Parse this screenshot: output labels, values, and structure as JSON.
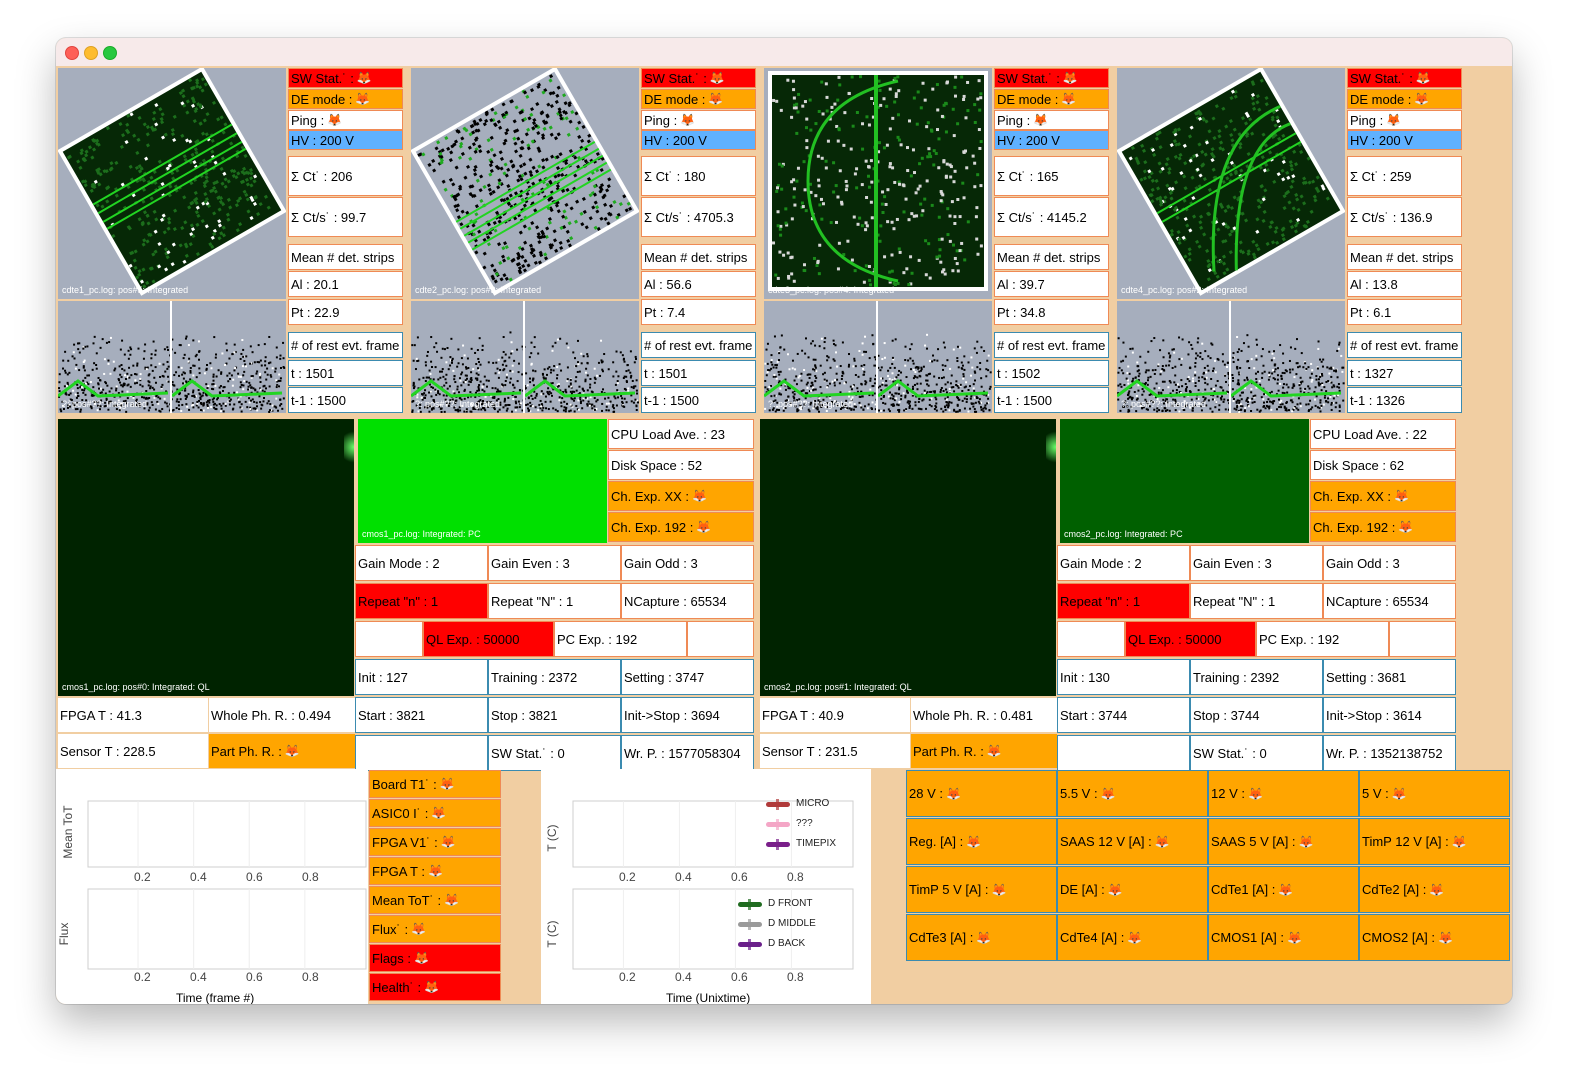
{
  "cdte": [
    {
      "image_label": "cdte1_pc.log: pos#5: Integrated",
      "spec_label": "?: pos#??: Integrated",
      "sw_stat": "SW Stat.˙ :",
      "de_mode": "DE mode :",
      "ping": "Ping :",
      "hv": "HV : 200 V",
      "sum_ct": "Σ Ct˙ : 206",
      "sum_cts": "Σ Ct/s˙ : 99.7",
      "mean_det": "Mean # det. strips",
      "al": "Al : 20.1",
      "pt": "Pt : 22.9",
      "rest": "# of rest evt. frame",
      "t": "t : 1501",
      "t1": "t-1 : 1500"
    },
    {
      "image_label": "cdte2_pc.log: pos#3: Integrated",
      "spec_label": "?: pos#??: Integrated",
      "sw_stat": "SW Stat.˙ :",
      "de_mode": "DE mode :",
      "ping": "Ping :",
      "hv": "HV : 200 V",
      "sum_ct": "Σ Ct˙ : 180",
      "sum_cts": "Σ Ct/s˙ : 4705.3",
      "mean_det": "Mean # det. strips",
      "al": "Al : 56.6",
      "pt": "Pt : 7.4",
      "rest": "# of rest evt. frame",
      "t": "t : 1501",
      "t1": "t-1 : 1500"
    },
    {
      "image_label": "cdte3_pc.log: pos#4: Integrated",
      "spec_label": "?: pos#??: Integrated",
      "sw_stat": "SW Stat.˙ :",
      "de_mode": "DE mode :",
      "ping": "Ping :",
      "hv": "HV : 200 V",
      "sum_ct": "Σ Ct˙ : 165",
      "sum_cts": "Σ Ct/s˙ : 4145.2",
      "mean_det": "Mean # det. strips",
      "al": "Al : 39.7",
      "pt": "Pt : 34.8",
      "rest": "# of rest evt. frame",
      "t": "t : 1502",
      "t1": "t-1 : 1500"
    },
    {
      "image_label": "cdte4_pc.log: pos#2: Integrated",
      "spec_label": "?: pos#??: Integrated",
      "sw_stat": "SW Stat.˙ :",
      "de_mode": "DE mode :",
      "ping": "Ping :",
      "hv": "HV : 200 V",
      "sum_ct": "Σ Ct˙ : 259",
      "sum_cts": "Σ Ct/s˙ : 136.9",
      "mean_det": "Mean # det. strips",
      "al": "Al : 13.8",
      "pt": "Pt : 6.1",
      "rest": "# of rest evt. frame",
      "t": "t : 1327",
      "t1": "t-1 : 1326"
    }
  ],
  "cmos": [
    {
      "ql_label": "cmos1_pc.log: pos#0: Integrated: QL",
      "pc_label": "cmos1_pc.log: Integrated: PC",
      "cpu": "CPU Load Ave. : 23",
      "disk": "Disk Space : 52",
      "ch_exp_xx": "Ch. Exp. XX :",
      "ch_exp_192": "Ch. Exp. 192 :",
      "gain_mode": "Gain Mode : 2",
      "gain_even": "Gain Even : 3",
      "gain_odd": "Gain Odd : 3",
      "repeat_n": "Repeat \"n\" : 1",
      "repeat_N": "Repeat \"N\" : 1",
      "ncapture": "NCapture : 65534",
      "ql_exp": "QL Exp. : 50000",
      "pc_exp": "PC Exp. : 192",
      "init": "Init : 127",
      "training": "Training : 2372",
      "setting": "Setting : 3747",
      "start": "Start : 3821",
      "stop": "Stop : 3821",
      "init_stop": "Init->Stop : 3694",
      "fpga_t": "FPGA T : 41.3",
      "whole_ph": "Whole Ph. R. : 0.494",
      "sensor_t": "Sensor T : 228.5",
      "part_ph": "Part Ph. R. :",
      "sw_stat": "SW Stat.˙ : 0",
      "wr_p": "Wr. P. : 1577058304"
    },
    {
      "ql_label": "cmos2_pc.log: pos#1: Integrated: QL",
      "pc_label": "cmos2_pc.log: Integrated: PC",
      "cpu": "CPU Load Ave. : 22",
      "disk": "Disk Space : 62",
      "ch_exp_xx": "Ch. Exp. XX :",
      "ch_exp_192": "Ch. Exp. 192 :",
      "gain_mode": "Gain Mode : 2",
      "gain_even": "Gain Even : 3",
      "gain_odd": "Gain Odd : 3",
      "repeat_n": "Repeat \"n\" : 1",
      "repeat_N": "Repeat \"N\" : 1",
      "ncapture": "NCapture : 65534",
      "ql_exp": "QL Exp. : 50000",
      "pc_exp": "PC Exp. : 192",
      "init": "Init : 130",
      "training": "Training : 2392",
      "setting": "Setting : 3681",
      "start": "Start : 3744",
      "stop": "Stop : 3744",
      "init_stop": "Init->Stop : 3614",
      "fpga_t": "FPGA T : 40.9",
      "whole_ph": "Whole Ph. R. : 0.481",
      "sensor_t": "Sensor T : 231.5",
      "part_ph": "Part Ph. R. :",
      "sw_stat": "SW Stat.˙ : 0",
      "wr_p": "Wr. P. : 1352138752"
    }
  ],
  "timepix": {
    "ylabel_top": "Mean ToT",
    "ylabel_bottom": "Flux",
    "xlabel": "Time (frame #)",
    "ticks": [
      "0.2",
      "0.4",
      "0.6",
      "0.8"
    ],
    "status": [
      {
        "label": "Board T1˙ :",
        "color": "orange"
      },
      {
        "label": "ASIC0 I˙ :",
        "color": "orange"
      },
      {
        "label": "FPGA V1˙ :",
        "color": "orange"
      },
      {
        "label": "FPGA T :",
        "color": "orange"
      },
      {
        "label": "Mean ToT˙ :",
        "color": "orange"
      },
      {
        "label": "Flux˙ :",
        "color": "orange"
      },
      {
        "label": "Flags :",
        "color": "red"
      },
      {
        "label": "Health˙ :",
        "color": "red"
      }
    ]
  },
  "temp_chart": {
    "ylabel": "T (C)",
    "xlabel": "Time (Unixtime)",
    "ticks": [
      "0.2",
      "0.4",
      "0.6",
      "0.8"
    ],
    "legend_top": [
      {
        "name": "MICRO",
        "color": "#b03a3a"
      },
      {
        "name": "???",
        "color": "#f4a6c6"
      },
      {
        "name": "TIMEPIX",
        "color": "#7a1f8a"
      }
    ],
    "legend_bottom": [
      {
        "name": "D FRONT",
        "color": "#1f6b1f"
      },
      {
        "name": "D MIDDLE",
        "color": "#9a9a9a"
      },
      {
        "name": "D BACK",
        "color": "#6a1f8a"
      }
    ]
  },
  "power": [
    [
      "28 V :",
      "5.5 V :",
      "12 V :",
      "5 V :"
    ],
    [
      "Reg. [A] :",
      "SAAS 12 V [A] :",
      "SAAS 5 V [A] :",
      "TimP 12 V [A] :"
    ],
    [
      "TimP 5 V [A] :",
      "DE [A] :",
      "CdTe1 [A] :",
      "CdTe2 [A] :"
    ],
    [
      "CdTe3 [A] :",
      "CdTe4 [A] :",
      "CMOS1 [A] :",
      "CMOS2 [A] :"
    ]
  ],
  "colors": {
    "red": "#ff0000",
    "orange": "#ffa500",
    "blue": "#5fb1ff",
    "background": "#f1cea2",
    "green": "#00e000"
  }
}
